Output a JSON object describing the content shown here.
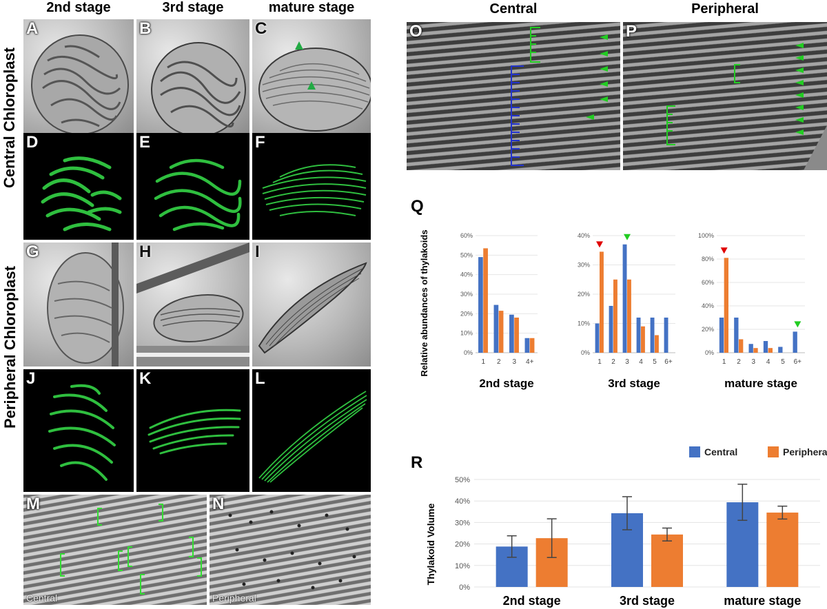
{
  "columns": {
    "c1": "2nd stage",
    "c2": "3rd stage",
    "c3": "mature stage",
    "o": "Central",
    "p": "Peripheral"
  },
  "rows": {
    "central": "Central Chloroplast",
    "peripheral": "Peripheral Chloroplast"
  },
  "panels": {
    "A": "A",
    "B": "B",
    "C": "C",
    "D": "D",
    "E": "E",
    "F": "F",
    "G": "G",
    "H": "H",
    "I": "I",
    "J": "J",
    "K": "K",
    "L": "L",
    "M": "M",
    "N": "N",
    "O": "O",
    "P": "P",
    "Q": "Q",
    "R": "R"
  },
  "panel_sublabels": {
    "M": "Central",
    "N": "Peripheral"
  },
  "colors": {
    "central": "#4472c4",
    "peripheral": "#ed7d31",
    "em_marker": "#33cc33",
    "red_marker": "#e00000",
    "green_marker": "#22cc22",
    "bracket_blue": "#2233cc"
  },
  "chart_data": [
    {
      "type": "bar",
      "panel": "Q",
      "title": "2nd stage",
      "ylabel": "Relative abundances of thylakoids",
      "categories": [
        "1",
        "2",
        "3",
        "4+"
      ],
      "ylim": [
        0,
        60
      ],
      "yticks": [
        "0%",
        "10%",
        "20%",
        "30%",
        "40%",
        "50%",
        "60%"
      ],
      "series": [
        {
          "values": [
            49,
            24.5,
            19.5,
            7.5
          ]
        },
        {
          "values": [
            53.5,
            21.5,
            18,
            7.5
          ]
        }
      ]
    },
    {
      "type": "bar",
      "panel": "Q",
      "title": "3rd stage",
      "categories": [
        "1",
        "2",
        "3",
        "4",
        "5",
        "6+"
      ],
      "ylim": [
        0,
        40
      ],
      "yticks": [
        "0%",
        "10%",
        "20%",
        "30%",
        "40%"
      ],
      "series": [
        {
          "values": [
            10,
            16,
            37,
            12,
            12,
            12
          ]
        },
        {
          "values": [
            34.5,
            25,
            25,
            9,
            6,
            null
          ]
        }
      ],
      "markers": [
        {
          "category": "1",
          "color": "red"
        },
        {
          "category": "3",
          "color": "green"
        }
      ]
    },
    {
      "type": "bar",
      "panel": "Q",
      "title": "mature stage",
      "categories": [
        "1",
        "2",
        "3",
        "4",
        "5",
        "6+"
      ],
      "ylim": [
        0,
        100
      ],
      "yticks": [
        "0%",
        "20%",
        "40%",
        "60%",
        "80%",
        "100%"
      ],
      "series": [
        {
          "values": [
            30,
            30,
            7.5,
            10,
            5,
            18
          ]
        },
        {
          "values": [
            81,
            11.5,
            4,
            4,
            null,
            null
          ]
        }
      ],
      "markers": [
        {
          "category": "1",
          "color": "red"
        },
        {
          "category": "6+",
          "color": "green"
        }
      ]
    },
    {
      "type": "bar",
      "panel": "R",
      "ylabel": "Thylakoid Volume",
      "categories": [
        "2nd stage",
        "3rd stage",
        "mature stage"
      ],
      "ylim": [
        0,
        50
      ],
      "yticks": [
        "0%",
        "10%",
        "20%",
        "30%",
        "40%",
        "50%"
      ],
      "legend": "top-right",
      "grid": true,
      "series": [
        {
          "name": "Central",
          "values": [
            18.8,
            34.3,
            39.4
          ],
          "error": [
            5,
            7.7,
            8.4
          ]
        },
        {
          "name": "Peripheral",
          "values": [
            22.7,
            24.4,
            34.6
          ],
          "error": [
            9,
            3,
            3
          ]
        }
      ]
    }
  ]
}
